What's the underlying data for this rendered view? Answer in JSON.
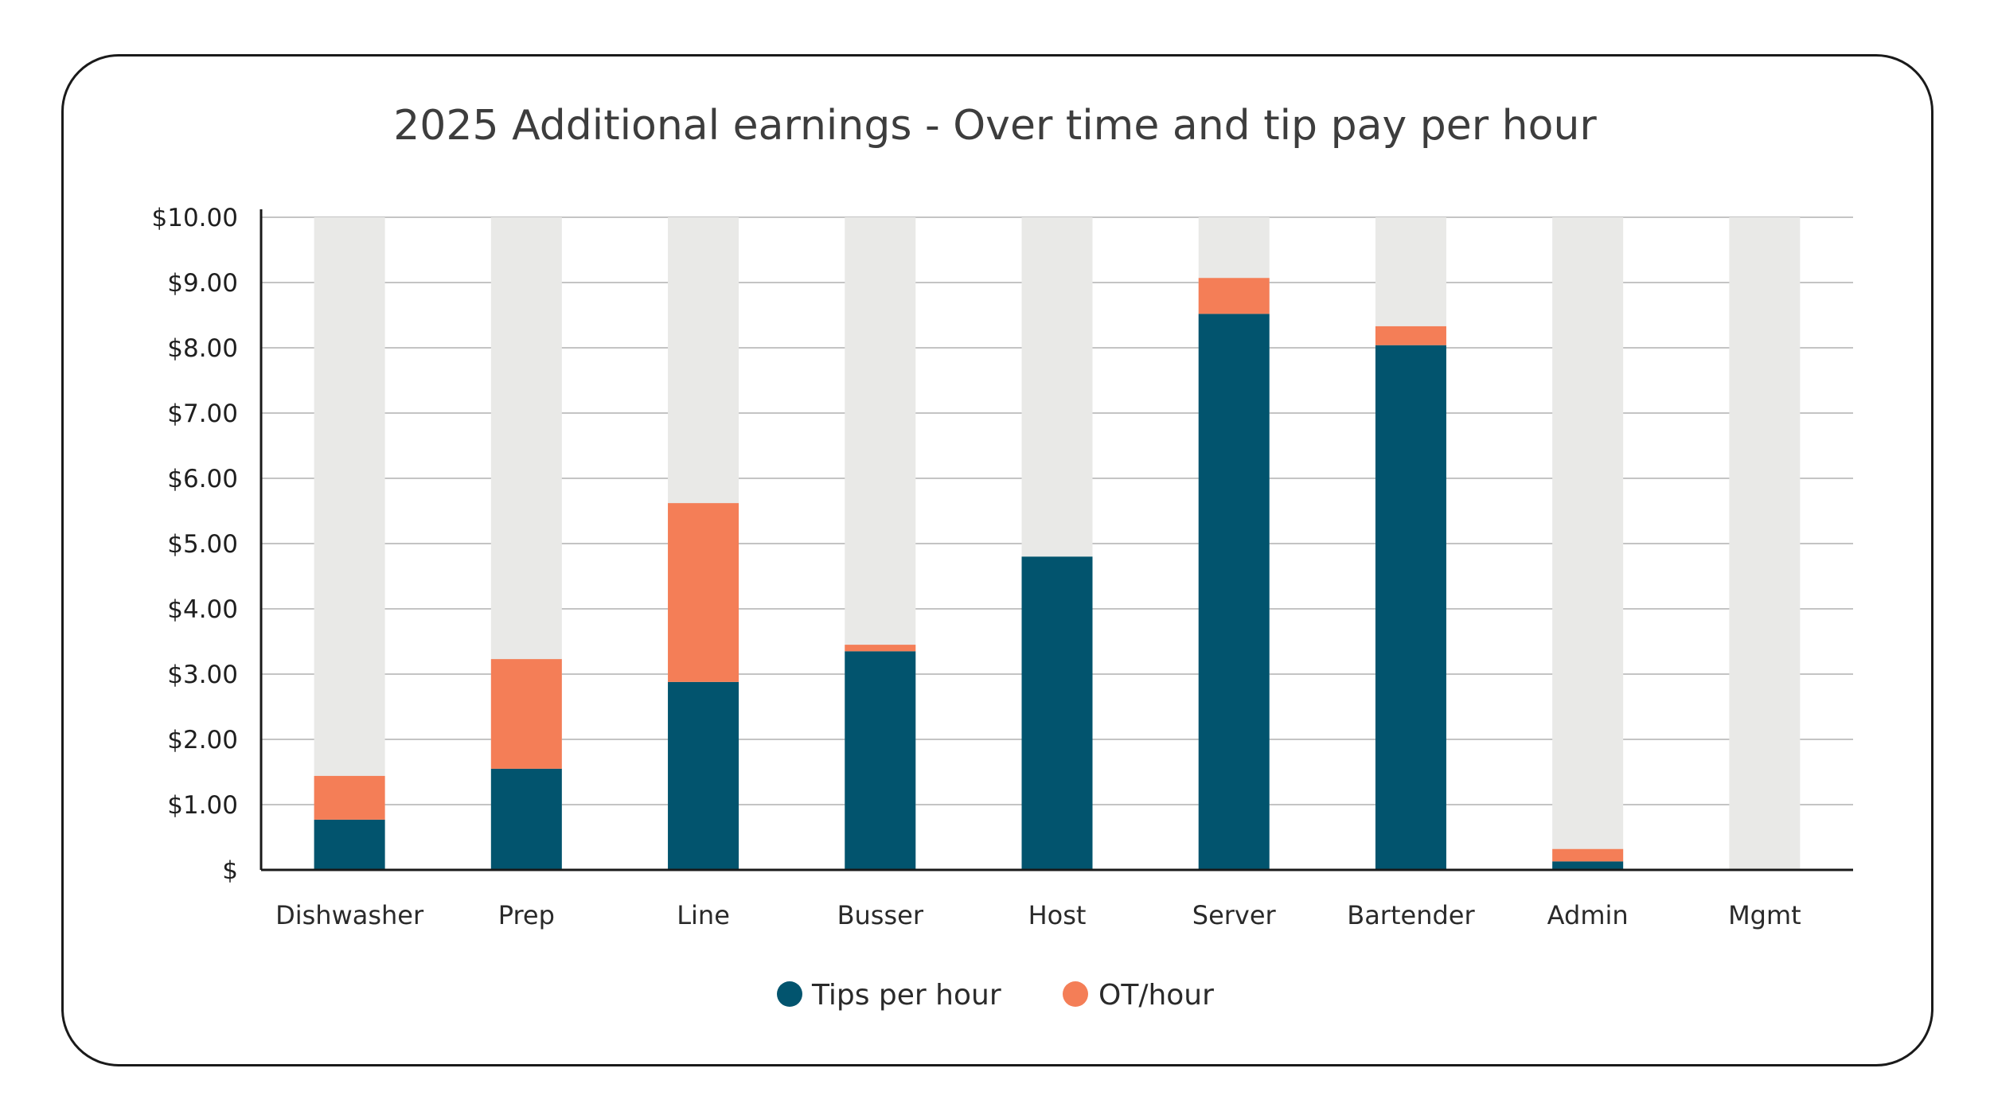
{
  "chart_data": {
    "type": "bar",
    "stacked": true,
    "title": "2025 Additional earnings - Over time and tip pay per hour",
    "categories": [
      "Dishwasher",
      "Prep",
      "Line",
      "Busser",
      "Host",
      "Server",
      "Bartender",
      "Admin",
      "Mgmt"
    ],
    "series": [
      {
        "name": "Tips per hour",
        "color": "#02546e",
        "values": [
          0.77,
          1.55,
          2.88,
          3.35,
          4.8,
          8.52,
          8.04,
          0.13,
          0
        ]
      },
      {
        "name": "OT/hour",
        "color": "#f47e57",
        "values": [
          0.67,
          1.68,
          2.74,
          0.1,
          0,
          0.55,
          0.29,
          0.19,
          0
        ]
      }
    ],
    "background_bar_color": "#e9e9e7",
    "ylim": [
      0,
      10
    ],
    "yticks": [
      0,
      1,
      2,
      3,
      4,
      5,
      6,
      7,
      8,
      9,
      10
    ],
    "ytick_labels": [
      "$",
      "$1.00",
      "$2.00",
      "$3.00",
      "$4.00",
      "$5.00",
      "$6.00",
      "$7.00",
      "$8.00",
      "$9.00",
      "$10.00"
    ],
    "grid": true,
    "legend_position": "bottom-center"
  }
}
